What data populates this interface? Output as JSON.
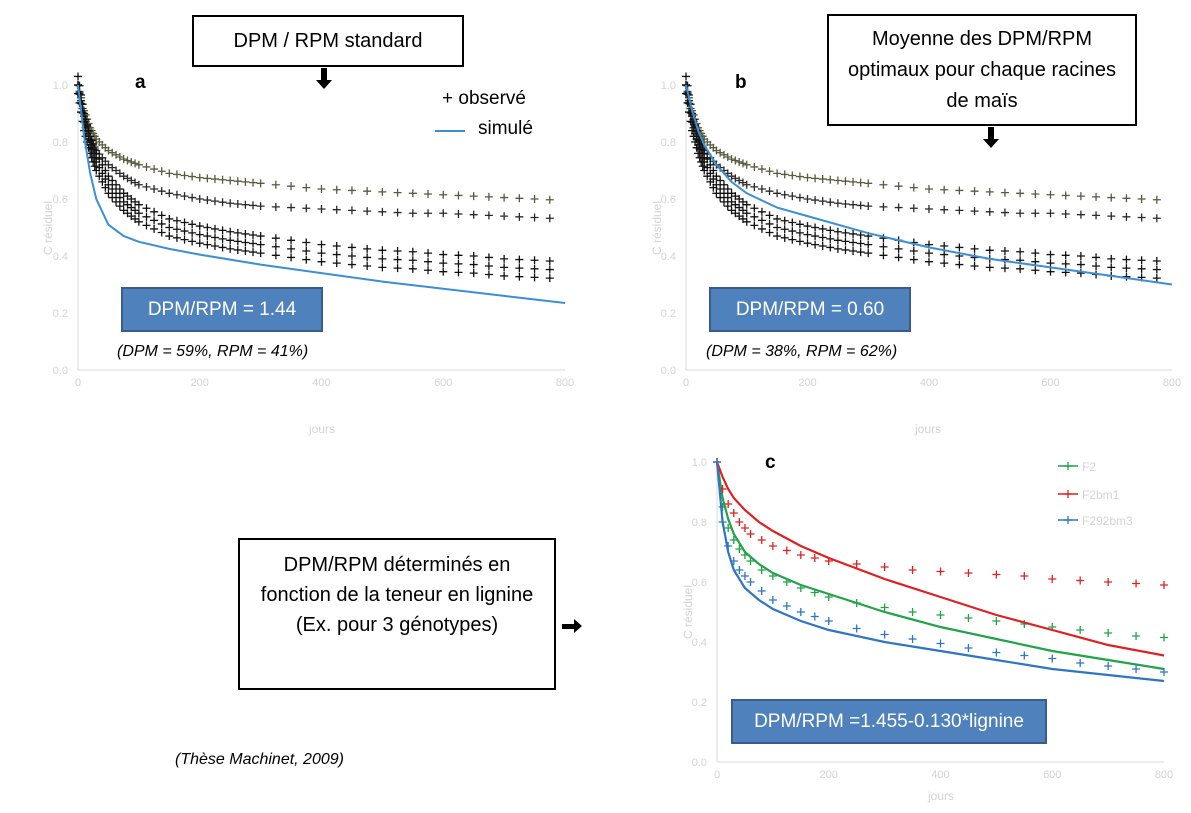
{
  "chart_data": [
    {
      "panel": "a",
      "type": "scatter",
      "xlabel": "jours",
      "ylabel": "C résiduel",
      "xlim": [
        0,
        800
      ],
      "ylim": [
        0,
        1
      ],
      "xticks": [
        "0",
        "200",
        "400",
        "600",
        "800"
      ],
      "yticks": [
        "0.0",
        "0.2",
        "0.4",
        "0.6",
        "0.8",
        "1.0"
      ],
      "legend": [
        "+ observé",
        "simulé"
      ],
      "box_label": "DPM / RPM standard",
      "ratio_label": "DPM/RPM = 1.44",
      "split_note": "(DPM = 59%, RPM = 41%)",
      "observed_upper": {
        "x": [
          0,
          10,
          20,
          30,
          50,
          75,
          100,
          150,
          200,
          250,
          300,
          350,
          400,
          450,
          500,
          550,
          600,
          650,
          700,
          750,
          800
        ],
        "y": [
          1.0,
          0.91,
          0.85,
          0.81,
          0.77,
          0.74,
          0.72,
          0.69,
          0.675,
          0.665,
          0.655,
          0.645,
          0.635,
          0.63,
          0.625,
          0.62,
          0.615,
          0.61,
          0.605,
          0.6,
          0.595
        ]
      },
      "observed_mid": {
        "x": [
          0,
          10,
          20,
          30,
          50,
          75,
          100,
          150,
          200,
          250,
          300,
          350,
          400,
          450,
          500,
          550,
          600,
          650,
          700,
          750,
          800
        ],
        "y": [
          1.0,
          0.89,
          0.82,
          0.77,
          0.72,
          0.68,
          0.65,
          0.62,
          0.6,
          0.585,
          0.575,
          0.57,
          0.565,
          0.56,
          0.555,
          0.55,
          0.55,
          0.545,
          0.54,
          0.535,
          0.53
        ]
      },
      "observed_low": {
        "x": [
          0,
          10,
          20,
          30,
          50,
          75,
          100,
          150,
          200,
          250,
          300,
          350,
          400,
          450,
          500,
          550,
          600,
          650,
          700,
          750,
          800
        ],
        "y": [
          1.0,
          0.87,
          0.79,
          0.73,
          0.65,
          0.59,
          0.55,
          0.5,
          0.475,
          0.455,
          0.44,
          0.425,
          0.41,
          0.4,
          0.39,
          0.385,
          0.375,
          0.37,
          0.36,
          0.355,
          0.35
        ]
      },
      "simulated": {
        "x": [
          0,
          10,
          20,
          30,
          50,
          75,
          100,
          150,
          200,
          300,
          400,
          500,
          600,
          700,
          800
        ],
        "y": [
          1.0,
          0.82,
          0.69,
          0.6,
          0.51,
          0.47,
          0.45,
          0.425,
          0.405,
          0.37,
          0.34,
          0.31,
          0.285,
          0.26,
          0.235
        ]
      }
    },
    {
      "panel": "b",
      "type": "scatter",
      "xlabel": "jours",
      "ylabel": "C résiduel",
      "xlim": [
        0,
        800
      ],
      "ylim": [
        0,
        1
      ],
      "xticks": [
        "0",
        "200",
        "400",
        "600",
        "800"
      ],
      "yticks": [
        "0.0",
        "0.2",
        "0.4",
        "0.6",
        "0.8",
        "1.0"
      ],
      "box_label": "Moyenne des DPM/RPM optimaux pour chaque racines de maïs",
      "ratio_label": "DPM/RPM = 0.60",
      "split_note": "(DPM = 38%, RPM = 62%)",
      "simulated": {
        "x": [
          0,
          10,
          20,
          30,
          50,
          75,
          100,
          150,
          200,
          300,
          400,
          500,
          600,
          700,
          800
        ],
        "y": [
          1.0,
          0.91,
          0.84,
          0.79,
          0.72,
          0.66,
          0.62,
          0.57,
          0.54,
          0.48,
          0.43,
          0.39,
          0.36,
          0.33,
          0.3
        ]
      }
    },
    {
      "panel": "c",
      "type": "line",
      "xlabel": "jours",
      "ylabel": "C résiduel",
      "xlim": [
        0,
        800
      ],
      "ylim": [
        0,
        1
      ],
      "xticks": [
        "0",
        "200",
        "400",
        "600",
        "800"
      ],
      "yticks": [
        "0.0",
        "0.2",
        "0.4",
        "0.6",
        "0.8",
        "1.0"
      ],
      "legend": [
        "F2",
        "F2bm1",
        "F292bm3"
      ],
      "ratio_label": "DPM/RPM =1.455-0.130*lignine",
      "series": [
        {
          "name": "F2",
          "color": "#21a348",
          "observed": {
            "x": [
              0,
              10,
              20,
              30,
              40,
              50,
              60,
              80,
              100,
              125,
              150,
              175,
              200,
              250,
              300,
              350,
              400,
              450,
              500,
              550,
              600,
              650,
              700,
              750,
              800
            ],
            "y": [
              1.0,
              0.85,
              0.78,
              0.74,
              0.71,
              0.69,
              0.67,
              0.64,
              0.62,
              0.6,
              0.58,
              0.565,
              0.55,
              0.53,
              0.515,
              0.5,
              0.49,
              0.48,
              0.47,
              0.46,
              0.45,
              0.44,
              0.43,
              0.42,
              0.415
            ]
          },
          "simulated": {
            "x": [
              0,
              10,
              20,
              30,
              50,
              75,
              100,
              150,
              200,
              300,
              400,
              500,
              600,
              700,
              800
            ],
            "y": [
              1.0,
              0.88,
              0.81,
              0.76,
              0.7,
              0.66,
              0.63,
              0.59,
              0.56,
              0.5,
              0.45,
              0.41,
              0.37,
              0.34,
              0.31
            ]
          }
        },
        {
          "name": "F2bm1",
          "color": "#e02020",
          "observed": {
            "x": [
              0,
              10,
              20,
              30,
              40,
              50,
              60,
              80,
              100,
              125,
              150,
              175,
              200,
              250,
              300,
              350,
              400,
              450,
              500,
              550,
              600,
              650,
              700,
              750,
              800
            ],
            "y": [
              1.0,
              0.91,
              0.86,
              0.83,
              0.8,
              0.78,
              0.76,
              0.74,
              0.72,
              0.705,
              0.69,
              0.68,
              0.67,
              0.66,
              0.65,
              0.64,
              0.635,
              0.63,
              0.625,
              0.62,
              0.61,
              0.605,
              0.6,
              0.595,
              0.59
            ]
          },
          "simulated": {
            "x": [
              0,
              10,
              20,
              30,
              50,
              75,
              100,
              150,
              200,
              300,
              400,
              500,
              600,
              700,
              800
            ],
            "y": [
              1.0,
              0.95,
              0.91,
              0.88,
              0.84,
              0.8,
              0.77,
              0.72,
              0.68,
              0.61,
              0.55,
              0.49,
              0.44,
              0.39,
              0.355
            ]
          }
        },
        {
          "name": "F292bm3",
          "color": "#2e75c4",
          "observed": {
            "x": [
              0,
              10,
              20,
              30,
              40,
              50,
              60,
              80,
              100,
              125,
              150,
              175,
              200,
              250,
              300,
              350,
              400,
              450,
              500,
              550,
              600,
              650,
              700,
              750,
              800
            ],
            "y": [
              1.0,
              0.8,
              0.72,
              0.67,
              0.64,
              0.62,
              0.6,
              0.57,
              0.54,
              0.52,
              0.5,
              0.485,
              0.47,
              0.445,
              0.425,
              0.41,
              0.395,
              0.38,
              0.365,
              0.355,
              0.345,
              0.33,
              0.32,
              0.31,
              0.3
            ]
          },
          "simulated": {
            "x": [
              0,
              10,
              20,
              30,
              50,
              75,
              100,
              150,
              200,
              300,
              400,
              500,
              600,
              700,
              800
            ],
            "y": [
              1.0,
              0.8,
              0.7,
              0.64,
              0.58,
              0.54,
              0.51,
              0.47,
              0.44,
              0.4,
              0.37,
              0.34,
              0.31,
              0.29,
              0.27
            ]
          }
        }
      ]
    }
  ],
  "annotations": {
    "lignin_box": "DPM/RPM  déterminés en fonction de la teneur en lignine (Ex. pour 3 génotypes)",
    "citation": "(Thèse Machinet, 2009)"
  }
}
